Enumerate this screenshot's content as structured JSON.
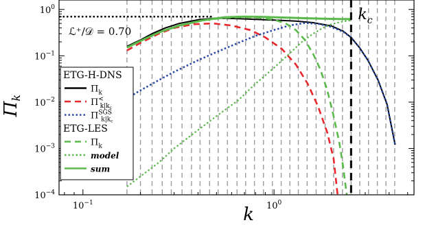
{
  "chart_data": {
    "type": "line",
    "xscale": "log",
    "yscale": "log",
    "xlim": [
      0.075,
      5.4
    ],
    "ylim": [
      0.0001,
      1.6
    ],
    "xlabel": "k",
    "ylabel": "Π_k",
    "x_ticks": [
      {
        "value": 0.1,
        "base": "10",
        "exp": "−1"
      },
      {
        "value": 1.0,
        "base": "10",
        "exp": "0"
      }
    ],
    "y_ticks": [
      {
        "value": 1,
        "base": "10",
        "exp": "0"
      },
      {
        "value": 0.1,
        "base": "10",
        "exp": "−1"
      },
      {
        "value": 0.01,
        "base": "10",
        "exp": "−2"
      },
      {
        "value": 0.001,
        "base": "10",
        "exp": "−3"
      },
      {
        "value": 0.0001,
        "base": "10",
        "exp": "−4"
      }
    ],
    "grid": "vertical dashed gray lines at each resolved k",
    "grid_x": [
      0.17,
      0.2,
      0.23,
      0.26,
      0.29,
      0.33,
      0.37,
      0.41,
      0.46,
      0.51,
      0.57,
      0.64,
      0.71,
      0.79,
      0.88,
      0.98,
      1.09,
      1.21,
      1.34,
      1.49,
      1.66,
      1.85,
      2.05,
      2.28,
      2.53,
      2.81,
      3.12,
      3.47,
      3.85,
      4.28
    ],
    "annotation": "ℒ⁺/𝒟 = 0.70",
    "cutoff": {
      "label": "k",
      "sub": "c",
      "x": 2.53
    },
    "plateau_line": {
      "y": 0.7,
      "x_end": 0.48,
      "style": "black dotted"
    },
    "legend": {
      "placement": "left",
      "groups": [
        {
          "header": "ETG-H-DNS",
          "entries": [
            {
              "label": "Π",
              "sub": "k",
              "sup": "",
              "color": "#000000",
              "dash": "solid"
            },
            {
              "label": "Π",
              "sub": "k|k",
              "subsub": "c",
              "sup": "<",
              "color": "#e8262b",
              "dash": "dashed"
            },
            {
              "label": "Π",
              "sub": "k|k",
              "subsub": "c",
              "sup": "SGS",
              "color": "#2a49a6",
              "dash": "dotted"
            }
          ]
        },
        {
          "header": "ETG-LES",
          "entries": [
            {
              "label": "Π",
              "sub": "k",
              "sup": "",
              "color": "#5ab94a",
              "dash": "dashed",
              "italic": false
            },
            {
              "label": "model",
              "color": "#5ab94a",
              "dash": "dotted",
              "italic": true
            },
            {
              "label": "sum",
              "color": "#5ab94a",
              "dash": "solid",
              "italic": true
            }
          ]
        }
      ]
    },
    "series": [
      {
        "name": "Π_k (ETG-H-DNS)",
        "color": "#000000",
        "dash": "solid",
        "width": 2,
        "points": [
          [
            0.17,
            0.16
          ],
          [
            0.2,
            0.22
          ],
          [
            0.23,
            0.3
          ],
          [
            0.27,
            0.4
          ],
          [
            0.32,
            0.5
          ],
          [
            0.4,
            0.6
          ],
          [
            0.5,
            0.65
          ],
          [
            0.65,
            0.63
          ],
          [
            0.8,
            0.61
          ],
          [
            1.0,
            0.59
          ],
          [
            1.3,
            0.56
          ],
          [
            1.6,
            0.52
          ],
          [
            2.0,
            0.44
          ],
          [
            2.3,
            0.34
          ],
          [
            2.53,
            0.25
          ],
          [
            2.8,
            0.15
          ],
          [
            3.1,
            0.08
          ],
          [
            3.5,
            0.03
          ],
          [
            3.9,
            0.009
          ],
          [
            4.3,
            0.0012
          ]
        ]
      },
      {
        "name": "Π<_k|kc (ETG-H-DNS)",
        "color": "#e8262b",
        "dash": "dashed",
        "width": 2.6,
        "points": [
          [
            0.17,
            0.13
          ],
          [
            0.2,
            0.19
          ],
          [
            0.25,
            0.3
          ],
          [
            0.3,
            0.4
          ],
          [
            0.38,
            0.48
          ],
          [
            0.48,
            0.5
          ],
          [
            0.6,
            0.45
          ],
          [
            0.75,
            0.36
          ],
          [
            0.9,
            0.25
          ],
          [
            1.1,
            0.14
          ],
          [
            1.3,
            0.065
          ],
          [
            1.5,
            0.025
          ],
          [
            1.7,
            0.008
          ],
          [
            1.9,
            0.0022
          ],
          [
            2.05,
            0.0006
          ],
          [
            2.15,
            0.0001
          ]
        ]
      },
      {
        "name": "ΠSGS_k|kc (ETG-H-DNS)",
        "color": "#2a49a6",
        "dash": "dotted",
        "width": 2.6,
        "points": [
          [
            0.17,
            0.012
          ],
          [
            0.2,
            0.018
          ],
          [
            0.25,
            0.03
          ],
          [
            0.3,
            0.045
          ],
          [
            0.4,
            0.08
          ],
          [
            0.5,
            0.12
          ],
          [
            0.65,
            0.19
          ],
          [
            0.8,
            0.27
          ],
          [
            1.0,
            0.36
          ],
          [
            1.2,
            0.45
          ],
          [
            1.45,
            0.51
          ],
          [
            1.7,
            0.49
          ],
          [
            2.0,
            0.42
          ],
          [
            2.3,
            0.33
          ],
          [
            2.53,
            0.25
          ],
          [
            2.8,
            0.15
          ],
          [
            3.1,
            0.08
          ],
          [
            3.5,
            0.03
          ],
          [
            3.9,
            0.009
          ],
          [
            4.3,
            0.0012
          ]
        ]
      },
      {
        "name": "Π_k (ETG-LES)",
        "color": "#5ab94a",
        "dash": "dashed",
        "width": 2.6,
        "points": [
          [
            0.17,
            0.15
          ],
          [
            0.2,
            0.21
          ],
          [
            0.25,
            0.32
          ],
          [
            0.32,
            0.45
          ],
          [
            0.42,
            0.58
          ],
          [
            0.55,
            0.66
          ],
          [
            0.7,
            0.68
          ],
          [
            0.85,
            0.66
          ],
          [
            1.0,
            0.6
          ],
          [
            1.15,
            0.5
          ],
          [
            1.3,
            0.36
          ],
          [
            1.45,
            0.22
          ],
          [
            1.6,
            0.11
          ],
          [
            1.75,
            0.05
          ],
          [
            1.9,
            0.018
          ],
          [
            2.05,
            0.005
          ],
          [
            2.2,
            0.0013
          ],
          [
            2.3,
            0.0004
          ],
          [
            2.4,
            0.0001
          ]
        ]
      },
      {
        "name": "model (ETG-LES)",
        "color": "#5ab94a",
        "dash": "dotted",
        "width": 2.2,
        "points": [
          [
            0.17,
            0.00015
          ],
          [
            0.2,
            0.00025
          ],
          [
            0.25,
            0.0005
          ],
          [
            0.3,
            0.001
          ],
          [
            0.4,
            0.0025
          ],
          [
            0.5,
            0.005
          ],
          [
            0.65,
            0.011
          ],
          [
            0.8,
            0.025
          ],
          [
            1.0,
            0.055
          ],
          [
            1.2,
            0.11
          ],
          [
            1.4,
            0.2
          ],
          [
            1.6,
            0.3
          ],
          [
            1.8,
            0.4
          ],
          [
            2.0,
            0.48
          ],
          [
            2.2,
            0.53
          ],
          [
            2.4,
            0.57
          ],
          [
            2.53,
            0.58
          ]
        ]
      },
      {
        "name": "sum (ETG-LES)",
        "color": "#5ab94a",
        "dash": "solid",
        "width": 3,
        "points": [
          [
            0.17,
            0.15
          ],
          [
            0.2,
            0.21
          ],
          [
            0.25,
            0.32
          ],
          [
            0.32,
            0.45
          ],
          [
            0.42,
            0.58
          ],
          [
            0.55,
            0.68
          ],
          [
            0.7,
            0.7
          ],
          [
            0.9,
            0.69
          ],
          [
            1.1,
            0.67
          ],
          [
            1.4,
            0.65
          ],
          [
            1.8,
            0.63
          ],
          [
            2.2,
            0.62
          ],
          [
            2.53,
            0.62
          ]
        ]
      }
    ]
  }
}
